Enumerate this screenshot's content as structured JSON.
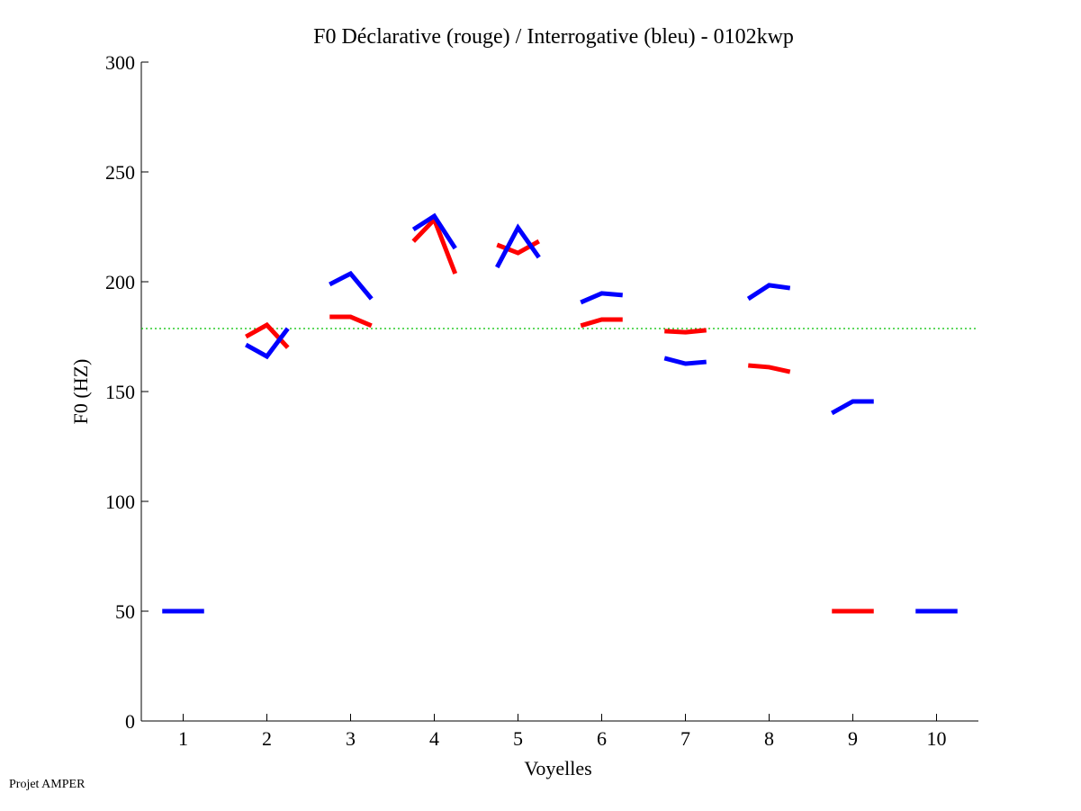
{
  "chart_data": {
    "type": "line",
    "title": "F0 Déclarative (rouge) / Interrogative (bleu) - 0102kwp",
    "xlabel": "Voyelles",
    "ylabel": "F0 (HZ)",
    "xlim": [
      0.5,
      10.5
    ],
    "ylim": [
      0,
      300
    ],
    "xticks": [
      "1",
      "2",
      "3",
      "4",
      "5",
      "6",
      "7",
      "8",
      "9",
      "10"
    ],
    "yticks": [
      "0",
      "50",
      "100",
      "150",
      "200",
      "250",
      "300"
    ],
    "reference_line": {
      "value": 178.7,
      "color": "#00c000",
      "style": "dotted"
    },
    "series": [
      {
        "name": "Déclarative",
        "color": "#ff0000",
        "segments": [
          {
            "vowel": 2,
            "values": [
              175,
              180.3,
              170
            ]
          },
          {
            "vowel": 3,
            "values": [
              184,
              184,
              180
            ]
          },
          {
            "vowel": 4,
            "values": [
              218.4,
              228.3,
              203.7
            ]
          },
          {
            "vowel": 5,
            "values": [
              216.8,
              213.1,
              218.4
            ]
          },
          {
            "vowel": 6,
            "values": [
              180,
              182.8,
              182.8
            ]
          },
          {
            "vowel": 7,
            "values": [
              177.5,
              177,
              177.9
            ]
          },
          {
            "vowel": 8,
            "values": [
              161.9,
              161.1,
              159
            ]
          },
          {
            "vowel": 9,
            "values": [
              50,
              50,
              50
            ]
          }
        ]
      },
      {
        "name": "Interrogative",
        "color": "#0000ff",
        "segments": [
          {
            "vowel": 1,
            "values": [
              50,
              50,
              50
            ]
          },
          {
            "vowel": 2,
            "values": [
              171.3,
              166,
              178.7
            ]
          },
          {
            "vowel": 3,
            "values": [
              198.8,
              203.7,
              192.2
            ]
          },
          {
            "vowel": 4,
            "values": [
              223.8,
              229.9,
              215.2
            ]
          },
          {
            "vowel": 5,
            "values": [
              206.6,
              224.6,
              211.1
            ]
          },
          {
            "vowel": 6,
            "values": [
              190.6,
              194.7,
              193.9
            ]
          },
          {
            "vowel": 7,
            "values": [
              165.2,
              162.7,
              163.5
            ]
          },
          {
            "vowel": 8,
            "values": [
              192.2,
              198.4,
              197.1
            ]
          },
          {
            "vowel": 9,
            "values": [
              140.2,
              145.5,
              145.5
            ]
          },
          {
            "vowel": 10,
            "values": [
              50,
              50,
              50
            ]
          }
        ]
      }
    ]
  },
  "footer": "Projet AMPER"
}
